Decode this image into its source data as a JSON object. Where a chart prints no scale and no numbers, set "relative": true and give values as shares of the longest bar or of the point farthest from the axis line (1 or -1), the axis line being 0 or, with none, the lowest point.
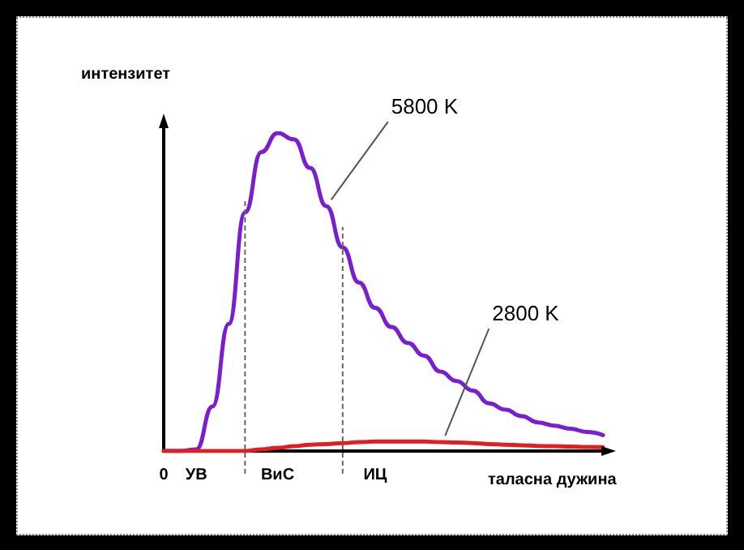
{
  "chart_data": {
    "type": "line",
    "relative": true,
    "xlabel": "таласна дужина",
    "ylabel": "интензитет",
    "categories": [
      "0",
      null,
      "УВ",
      null,
      null,
      null,
      null,
      "ВиС",
      null,
      null,
      null,
      null,
      null,
      "ИЦ",
      null,
      null,
      null,
      null,
      null,
      null,
      null,
      null,
      null,
      null,
      null,
      null,
      null,
      null
    ],
    "series": [
      {
        "name": "5800 K",
        "color": "#7a1fd0",
        "values": [
          0,
          0,
          0.005,
          0.14,
          0.4,
          0.75,
          0.94,
          1,
          0.98,
          0.89,
          0.77,
          0.64,
          0.53,
          0.45,
          0.39,
          0.34,
          0.3,
          0.25,
          0.22,
          0.19,
          0.15,
          0.13,
          0.11,
          0.09,
          0.08,
          0.07,
          0.06,
          0.05
        ]
      },
      {
        "name": "2800 K",
        "color": "#e02020",
        "values": [
          0,
          0,
          0,
          0,
          0,
          0,
          0.005,
          0.01,
          0.015,
          0.02,
          0.022,
          0.025,
          0.028,
          0.03,
          0.03,
          0.03,
          0.03,
          0.028,
          0.027,
          0.025,
          0.022,
          0.02,
          0.018,
          0.016,
          0.015,
          0.014,
          0.013,
          0.012
        ]
      }
    ],
    "marker": "none",
    "line_style": "solid"
  }
}
